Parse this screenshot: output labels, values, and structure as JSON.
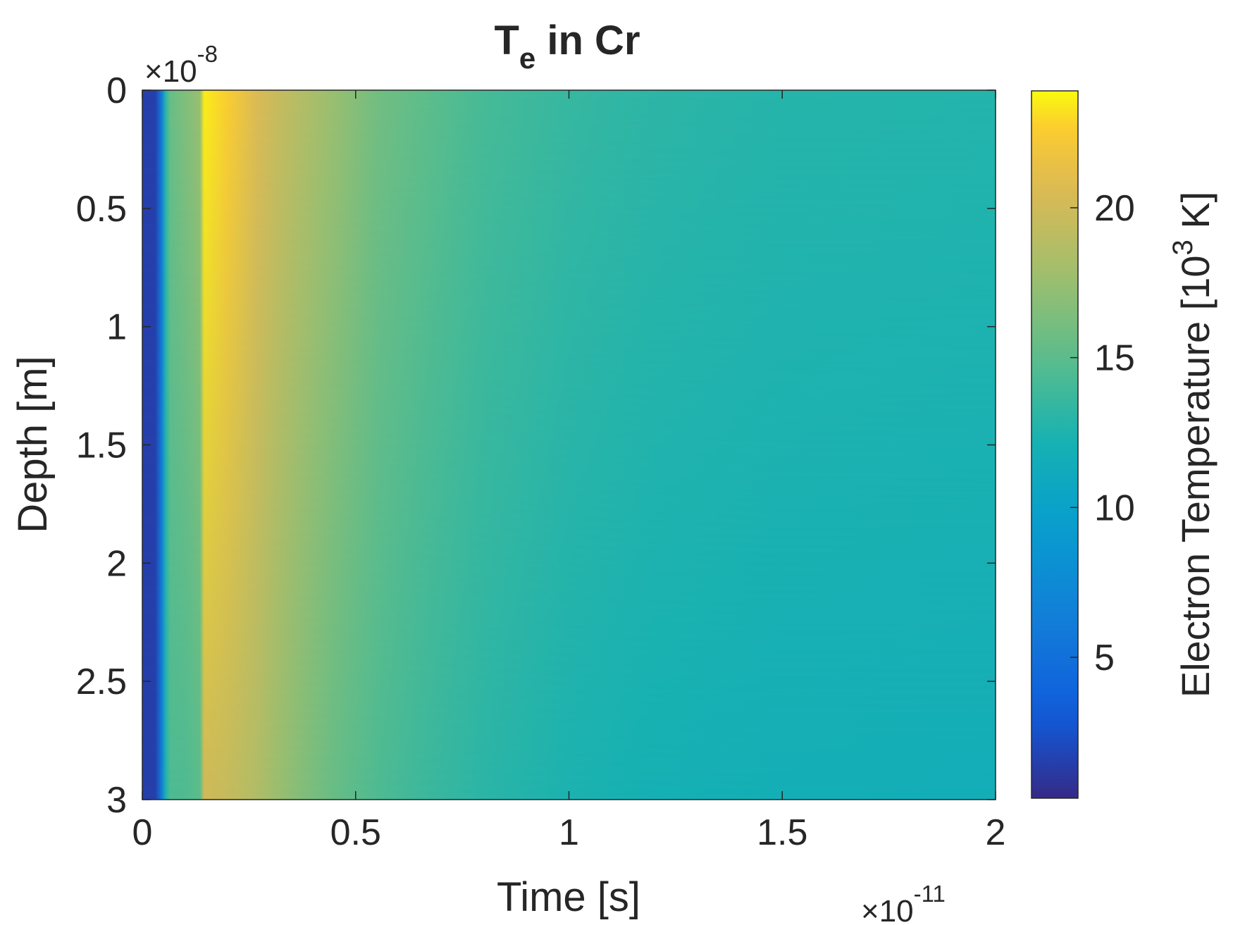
{
  "chart_data": {
    "type": "heatmap",
    "title": {
      "main": "T",
      "subscript": "e",
      "suffix": " in Cr"
    },
    "xlabel": "Time [s]",
    "ylabel": "Depth [m]",
    "x_exponent": {
      "base": "×10",
      "power": "-11"
    },
    "y_exponent": {
      "base": "×10",
      "power": "-8"
    },
    "xlim": [
      0,
      2
    ],
    "ylim": [
      0,
      3
    ],
    "y_reversed": true,
    "xticks": [
      0,
      0.5,
      1,
      1.5,
      2
    ],
    "xtick_labels": [
      "0",
      "0.5",
      "1",
      "1.5",
      "2"
    ],
    "yticks": [
      0,
      0.5,
      1,
      1.5,
      2,
      2.5,
      3
    ],
    "ytick_labels": [
      "0",
      "0.5",
      "1",
      "1.5",
      "2",
      "2.5",
      "3"
    ],
    "colorbar": {
      "label_prefix": "Electron Temperature [10",
      "label_sup": "3",
      "label_suffix": " K]",
      "clim": [
        0.3,
        23.9
      ],
      "ticks": [
        5,
        10,
        15,
        20
      ],
      "tick_labels": [
        "5",
        "10",
        "15",
        "20"
      ],
      "colormap": "parula"
    },
    "time_profile": {
      "x": [
        0,
        0.03,
        0.045,
        0.055,
        0.065,
        0.1,
        0.135,
        0.145,
        0.2,
        0.27,
        0.32,
        0.38,
        0.45,
        0.55,
        0.65,
        0.8,
        1.0,
        1.2,
        1.5,
        2.0
      ],
      "Te_top": [
        1.5,
        1.5,
        6,
        13,
        15.5,
        16.5,
        17.5,
        23.5,
        22.5,
        20.5,
        19.5,
        18.5,
        17.5,
        16,
        15.2,
        14.2,
        13.5,
        13.1,
        12.8,
        12.7
      ],
      "Te_bottom": [
        1.5,
        1.5,
        6,
        12.5,
        14.5,
        14.5,
        15,
        20,
        19.5,
        18.5,
        17.5,
        16.5,
        15.5,
        14.5,
        13.8,
        13,
        12.4,
        12.1,
        11.8,
        11.7
      ]
    }
  }
}
